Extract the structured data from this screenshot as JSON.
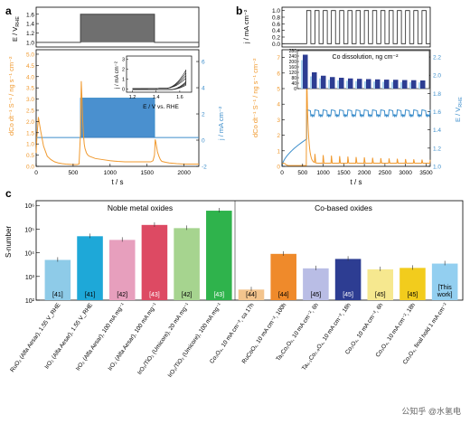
{
  "panels": {
    "a": {
      "letter": "a",
      "top_axis_label": "E / V",
      "top_axis_sub": "RHE",
      "y_left_label": "dCo dt⁻¹ S⁻¹ / ng s⁻¹ cm⁻²",
      "y_right_label": "j / mA cm⁻²",
      "x_label": "t / s",
      "inset_y_label": "j / mA cm⁻²",
      "inset_x_label": "E / V vs. RHE"
    },
    "b": {
      "letter": "b",
      "top_axis_label": "j / mA cm⁻²",
      "y_left_label": "dCo dt⁻¹ S⁻¹ / ng s⁻¹ cm⁻²",
      "y_right_label": "E / V",
      "y_right_sub": "RHE",
      "x_label": "t / s",
      "inset_title": "Co dissolution, ng cm⁻²"
    },
    "c": {
      "letter": "c",
      "y_label": "S-number",
      "group1_label": "Noble metal oxides",
      "group2_label": "Co-based oxides"
    }
  },
  "chart_data": [
    {
      "type": "line",
      "panel": "a",
      "x_ticks": [
        "0",
        "500",
        "1000",
        "1500",
        "2000"
      ],
      "xlim": [
        0,
        2200
      ],
      "top_y_ticks": [
        "1.6",
        "1.4",
        "1.2",
        "1.0"
      ],
      "top_ylim": [
        0.9,
        1.75
      ],
      "y_left_ticks": [
        "0.0",
        "0.5",
        "1.0",
        "1.5",
        "2.0",
        "2.5",
        "3.0",
        "3.5",
        "4.0",
        "4.5",
        "5.0"
      ],
      "ylim_left": [
        0,
        5.2
      ],
      "y_right_ticks": [
        "-2",
        "0",
        "2",
        "4",
        "6"
      ],
      "ylim_right": [
        -2,
        6.9
      ],
      "series": [
        {
          "x": [
            0,
            10,
            30,
            60,
            100,
            150,
            200,
            250,
            300,
            350,
            400,
            450,
            500,
            550,
            580,
            600,
            610,
            620,
            630,
            640,
            650,
            660,
            680,
            700,
            720,
            760,
            800,
            900,
            1000,
            1100,
            1200,
            1300,
            1400,
            1500,
            1550,
            1580,
            1600,
            1610,
            1620,
            1630,
            1640,
            1660,
            1680,
            1700,
            1750,
            1800,
            1900,
            2000,
            2100,
            2200
          ],
          "y": [
            0.6,
            1.3,
            2.2,
            1.6,
            0.9,
            0.45,
            0.3,
            0.2,
            0.15,
            0.12,
            0.1,
            0.09,
            0.08,
            0.08,
            0.1,
            1.5,
            3.8,
            3.0,
            2.0,
            1.4,
            1.0,
            0.8,
            0.6,
            0.5,
            0.45,
            0.4,
            0.35,
            0.3,
            0.25,
            0.22,
            0.2,
            0.2,
            0.2,
            0.2,
            0.2,
            0.25,
            0.5,
            1.2,
            1.05,
            0.85,
            0.65,
            0.45,
            0.3,
            0.22,
            0.18,
            0.15,
            0.12,
            0.1,
            0.1,
            0.1
          ]
        },
        {
          "x": [
            0,
            600,
            601,
            1600,
            1601,
            2200
          ],
          "y": [
            0.2,
            0.2,
            3.2,
            3.2,
            0.2,
            0.2
          ]
        }
      ],
      "top_trace": {
        "x": [
          0,
          600,
          600,
          1600,
          1600,
          2200
        ],
        "y": [
          1.0,
          1.0,
          1.6,
          1.6,
          1.0,
          1.0
        ]
      },
      "inset": {
        "x_ticks": [
          "1.2",
          "1.4",
          "1.6"
        ],
        "xlim": [
          1.15,
          1.7
        ],
        "y_ticks": [
          "0",
          "1",
          "2",
          "3"
        ],
        "ylim": [
          -0.3,
          3.3
        ]
      }
    },
    {
      "type": "line",
      "panel": "b",
      "x_ticks": [
        "0",
        "500",
        "1000",
        "1500",
        "2000",
        "2500",
        "3000",
        "3500"
      ],
      "xlim": [
        0,
        3600
      ],
      "top_y_ticks": [
        "1.0",
        "0.8",
        "0.6",
        "0.4",
        "0.2",
        "0.0"
      ],
      "top_ylim": [
        -0.1,
        1.1
      ],
      "y_left_ticks": [
        "0",
        "1",
        "2",
        "3",
        "4",
        "5",
        "6",
        "7"
      ],
      "ylim_left": [
        0,
        7.5
      ],
      "y_right_ticks": [
        "1.0",
        "1.2",
        "1.4",
        "1.6",
        "1.8",
        "2.0",
        "2.2"
      ],
      "ylim_right": [
        1.0,
        2.28
      ],
      "inset": {
        "type": "bar",
        "y_ticks": [
          "0",
          "40",
          "80",
          "120",
          "160",
          "200",
          "240",
          "280"
        ],
        "ylim": [
          0,
          280
        ],
        "values": [
          250,
          120,
          95,
          85,
          80,
          75,
          72,
          70,
          68,
          66,
          65,
          63,
          62,
          60
        ],
        "light_values": [
          210,
          90,
          75,
          65,
          60,
          58,
          55,
          53,
          52,
          50,
          49,
          48,
          47,
          46
        ]
      }
    },
    {
      "type": "bar",
      "panel": "c",
      "y_ticks": [
        "10²",
        "10³",
        "10⁴",
        "10⁵",
        "10⁶"
      ],
      "ylim_log10": [
        2,
        6.2
      ],
      "categories": [
        "RuO₂ (Alfa Aesar), 1.55 V_RHE",
        "IrO₂ (Alfa Aesar), 1.55 V_RHE",
        "IrO₂ (Alfa Aesar), 100 mA mg⁻¹",
        "IrO₂ (Alfa Aesar), 100 mA mg⁻¹",
        "IrO₂/TiO₂ (Umicore), 20 mA mg⁻¹",
        "IrO₂/TiO₂ (Umicore), 100 mA mg⁻¹",
        "Co₃O₄, 10 mA cm⁻², ca 17h",
        "RuCoOₓ, 10 mA cm⁻², 100h",
        "Ta₁Co₂O₆, 10 mA cm⁻², 6h",
        "Ta₀.₁Co₂.₉O₄, 10 mA cm⁻², 18h",
        "Co₃O₄, 10 mA cm⁻², 6h",
        "Co₃O₄, 10 mA cm⁻², 18h",
        "Co₃O₄, final hold 1 mA cm⁻²"
      ],
      "values": [
        5000,
        50000,
        35000,
        150000,
        110000,
        600000,
        280,
        9000,
        2200,
        5500,
        2000,
        2300,
        3500
      ],
      "refs": [
        "[41]",
        "[41]",
        "[42]",
        "[43]",
        "[42]",
        "[43]",
        "[44]",
        "[44]",
        "[45]",
        "[45]",
        "[45]",
        "[45]",
        "[This work]"
      ],
      "colors": [
        "#8ecbe8",
        "#1ea8d8",
        "#e79fbd",
        "#dd4a63",
        "#a6d48f",
        "#2fb34c",
        "#f3c48d",
        "#ef8a2b",
        "#b9bde5",
        "#2d3d92",
        "#f6e88f",
        "#f2cc1d",
        "#93cff0"
      ]
    }
  ],
  "colors": {
    "orange": "#f0992e",
    "blue": "#3d8ecb",
    "gray_fill": "#6f6f6f"
  },
  "watermark": "公知乎 @水氢电"
}
